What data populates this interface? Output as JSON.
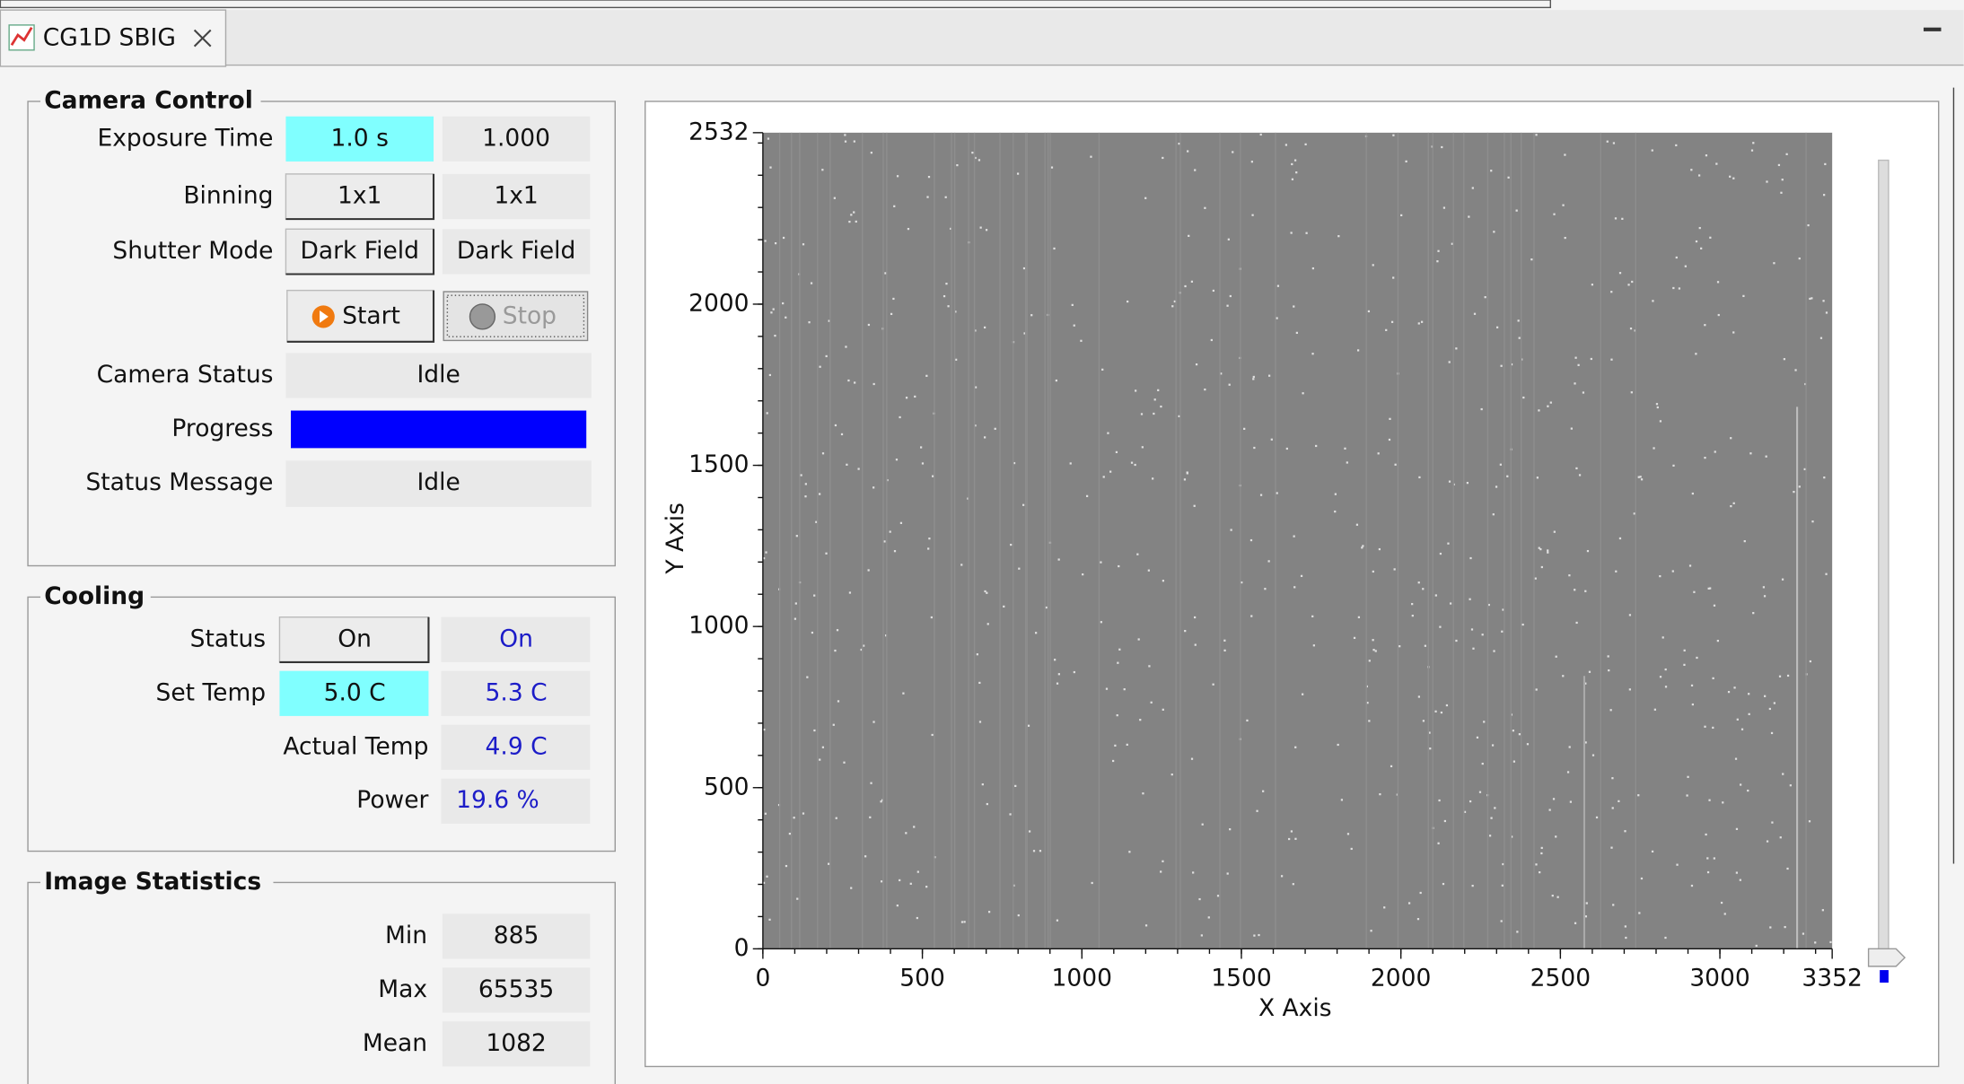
{
  "tab": {
    "title": "CG1D SBIG"
  },
  "camera_control": {
    "title": "Camera Control",
    "rows": [
      {
        "label": "Exposure Time",
        "setpoint": "1.0 s",
        "readback": "1.000"
      },
      {
        "label": "Binning",
        "setpoint": "1x1",
        "readback": "1x1"
      },
      {
        "label": "Shutter Mode",
        "setpoint": "Dark Field",
        "readback": "Dark Field"
      }
    ],
    "start": "Start",
    "stop": "Stop",
    "camera_status": {
      "label": "Camera Status",
      "value": "Idle"
    },
    "progress": {
      "label": "Progress"
    },
    "status_message": {
      "label": "Status Message",
      "value": "Idle"
    }
  },
  "cooling": {
    "title": "Cooling",
    "status": {
      "label": "Status",
      "setpoint": "On",
      "readback": "On"
    },
    "set_temp": {
      "label": "Set Temp",
      "setpoint": "5.0 C",
      "readback": "5.3 C"
    },
    "actual_temp": {
      "label": "Actual Temp",
      "readback": "4.9 C"
    },
    "power": {
      "label": "Power",
      "readback": "19.6 %"
    }
  },
  "image_statistics": {
    "title": "Image Statistics",
    "rows": [
      {
        "label": "Min",
        "value": 885
      },
      {
        "label": "Max",
        "value": 65535
      },
      {
        "label": "Mean",
        "value": 1082
      }
    ]
  },
  "image_plot": {
    "xlabel": "X Axis",
    "ylabel": "Y Axis",
    "xlim": [
      0,
      3352
    ],
    "ylim": [
      0,
      2532
    ],
    "xticks": [
      0,
      500,
      1000,
      1500,
      2000,
      2500,
      3000,
      3352
    ],
    "yticks": [
      0,
      500,
      1000,
      1500,
      2000,
      2532
    ]
  }
}
